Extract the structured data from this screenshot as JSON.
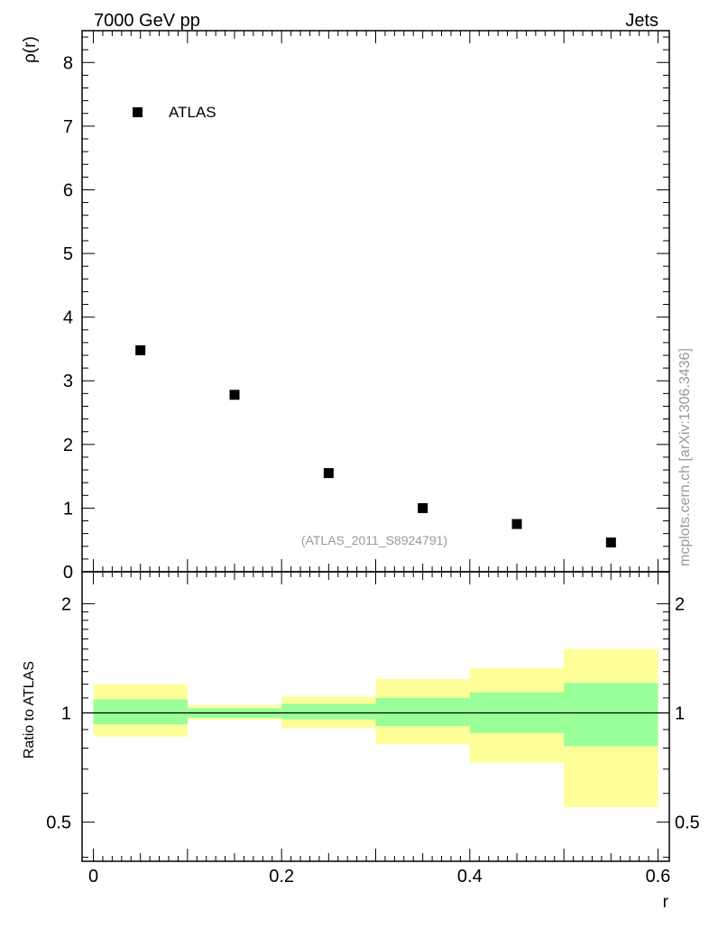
{
  "header": {
    "left_title": "7000 GeV pp",
    "right_title": "Jets"
  },
  "side_text": "mcplots.cern.ch [arXiv:1306.3436]",
  "analysis_tag": "(ATLAS_2011_S8924791)",
  "colors": {
    "data_marker": "#000000",
    "band_outer": "#ffff99",
    "band_inner": "#99ff99",
    "grey_text": "#999999"
  },
  "chart_data": [
    {
      "type": "scatter",
      "panel": "main",
      "ylabel": "ρ(r)",
      "xlim": [
        -0.012,
        0.612
      ],
      "ylim": [
        0,
        8.5
      ],
      "yticks": [
        0,
        1,
        2,
        3,
        4,
        5,
        6,
        7,
        8
      ],
      "ytick_labels": [
        "0",
        "1",
        "2",
        "3",
        "4",
        "5",
        "6",
        "7",
        "8"
      ],
      "legend_position": "top-left",
      "series": [
        {
          "name": "ATLAS",
          "x": [
            0.05,
            0.15,
            0.25,
            0.35,
            0.45,
            0.55
          ],
          "y": [
            3.48,
            2.78,
            1.55,
            1.0,
            0.75,
            0.46
          ]
        }
      ]
    },
    {
      "type": "area",
      "panel": "ratio",
      "ylabel": "Ratio to ATLAS",
      "xlabel": "r",
      "xlim": [
        -0.012,
        0.612
      ],
      "ylim": [
        0.39,
        2.45
      ],
      "log_y": true,
      "xticks": [
        0,
        0.2,
        0.4,
        0.6
      ],
      "xtick_labels": [
        "0",
        "0.2",
        "0.4",
        "0.6"
      ],
      "yticks": [
        0.5,
        1,
        2
      ],
      "ytick_labels": [
        "0.5",
        "1",
        "2"
      ],
      "reference_line": 1,
      "bins": [
        [
          0.0,
          0.1
        ],
        [
          0.1,
          0.2
        ],
        [
          0.2,
          0.3
        ],
        [
          0.3,
          0.4
        ],
        [
          0.4,
          0.5
        ],
        [
          0.5,
          0.6
        ]
      ],
      "inner_band": {
        "low": [
          0.93,
          0.97,
          0.96,
          0.92,
          0.88,
          0.81
        ],
        "high": [
          1.09,
          1.03,
          1.06,
          1.1,
          1.14,
          1.21
        ]
      },
      "outer_band": {
        "low": [
          0.86,
          0.96,
          0.91,
          0.82,
          0.73,
          0.55
        ],
        "high": [
          1.2,
          1.05,
          1.11,
          1.24,
          1.33,
          1.5
        ]
      }
    }
  ]
}
